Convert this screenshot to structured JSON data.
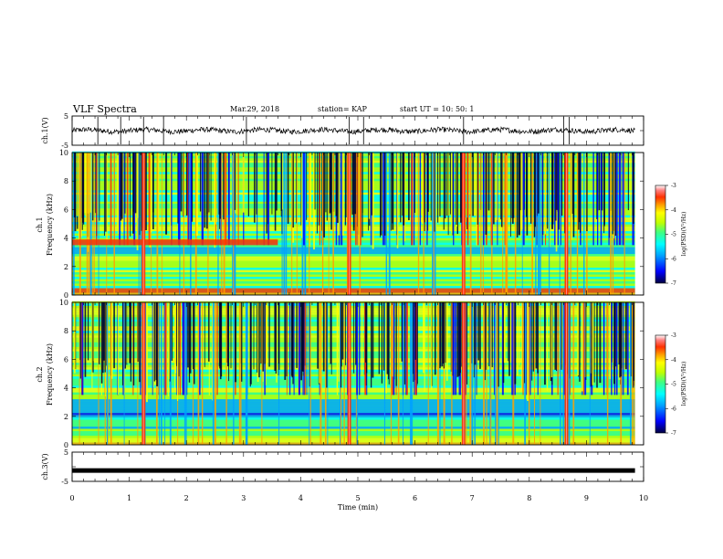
{
  "header": {
    "title": "VLF Spectra",
    "date": "Mar.29, 2018",
    "station": "station= KAP",
    "start": "start  UT =   10: 50: 1"
  },
  "colors": {
    "spectrum_scale": [
      "#000080",
      "#0000ff",
      "#00a0ff",
      "#00ffff",
      "#40ff80",
      "#c0ff00",
      "#ffff00",
      "#ffa000",
      "#ff3000",
      "#e00000",
      "#ffffff"
    ],
    "trace": "#000000"
  },
  "chart_data": [
    {
      "type": "line",
      "name": "ch1-waveform",
      "ylabel": "ch.1(V)",
      "ylim": [
        -5,
        5
      ],
      "yticks": [
        "5",
        "-5"
      ],
      "xlim": [
        0,
        10
      ],
      "approx_baseline": 0,
      "approx_noise_amplitude": 1.3
    },
    {
      "type": "heatmap",
      "name": "ch1-spectrogram",
      "ylabel_top": "ch.1",
      "ylabel": "Frequency (kHz)",
      "ylim": [
        0,
        10
      ],
      "yticks": [
        "0",
        "2",
        "4",
        "6",
        "8",
        "10"
      ],
      "xlim": [
        0,
        10
      ],
      "colorbar": {
        "label": "log(PSD)(V²/Hz)",
        "range": [
          -7,
          -3
        ],
        "ticks": [
          "-3",
          "-4",
          "-5",
          "-6",
          "-7"
        ]
      },
      "features": {
        "impulsive_bursts_min": [
          1.25,
          4.85,
          6.85,
          8.65
        ],
        "horizontal_band_khz": [
          3.5,
          3.9
        ],
        "horizontal_band_end_min": 3.6,
        "low_power_band_khz": [
          2.8,
          3.3
        ]
      }
    },
    {
      "type": "heatmap",
      "name": "ch2-spectrogram",
      "ylabel_top": "ch.2",
      "ylabel": "Frequency (kHz)",
      "ylim": [
        0,
        10
      ],
      "yticks": [
        "0",
        "2",
        "4",
        "6",
        "8",
        "10"
      ],
      "xlim": [
        0,
        10
      ],
      "colorbar": {
        "label": "log(PSD)(V²/Hz)",
        "range": [
          -7,
          -3
        ],
        "ticks": [
          "-3",
          "-4",
          "-5",
          "-6",
          "-7"
        ]
      },
      "features": {
        "impulsive_bursts_min": [
          1.25,
          4.85,
          6.85,
          8.65
        ],
        "low_power_band_khz": [
          1.8,
          3.1
        ]
      }
    },
    {
      "type": "line",
      "name": "ch3-waveform",
      "ylabel": "ch.3(V)",
      "ylim": [
        -5,
        5
      ],
      "yticks": [
        "5",
        "-5"
      ],
      "xlim": [
        0,
        10
      ],
      "xlabel": "Time (min)",
      "xticks": [
        "0",
        "1",
        "2",
        "3",
        "4",
        "5",
        "6",
        "7",
        "8",
        "9",
        "10"
      ],
      "constant_value": -1.3
    }
  ]
}
